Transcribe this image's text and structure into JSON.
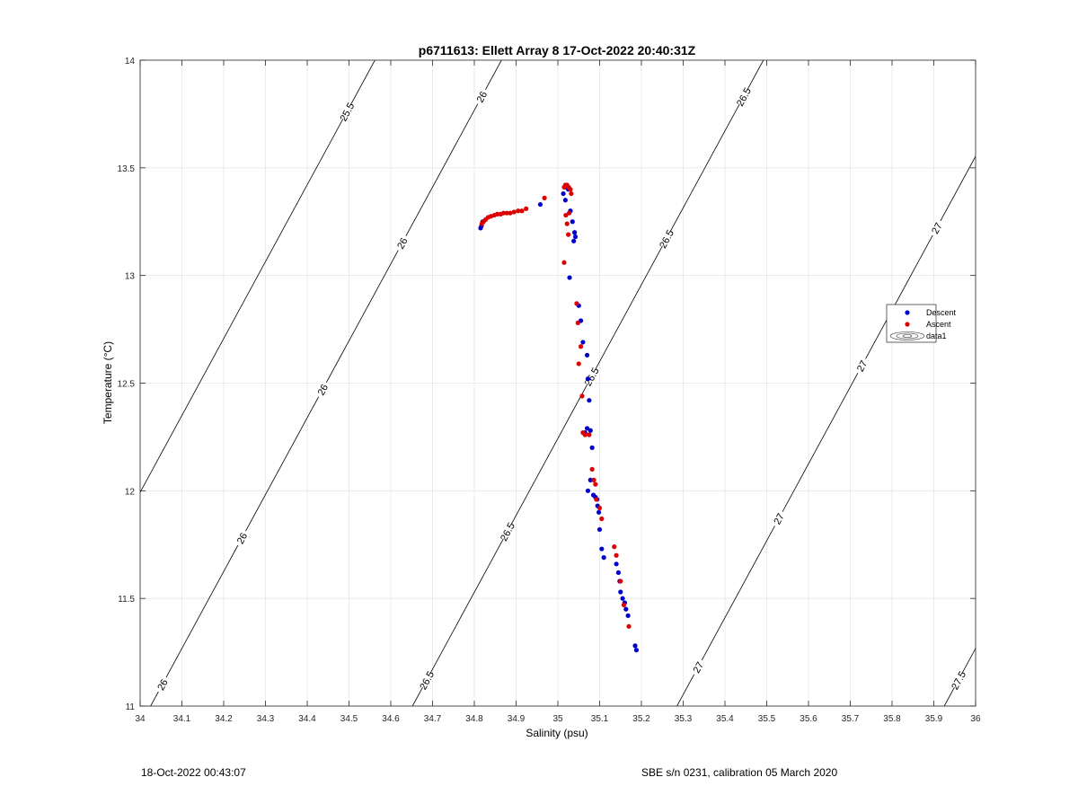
{
  "chart_data": {
    "type": "scatter",
    "title": "p6711613: Ellett Array 8 17-Oct-2022 20:40:31Z",
    "xlabel": "Salinity (psu)",
    "ylabel": "Temperature (°C)",
    "xlim": [
      34,
      36
    ],
    "ylim": [
      11,
      14
    ],
    "xticks": [
      34,
      34.1,
      34.2,
      34.3,
      34.4,
      34.5,
      34.6,
      34.7,
      34.8,
      34.9,
      35,
      35.1,
      35.2,
      35.3,
      35.4,
      35.5,
      35.6,
      35.7,
      35.8,
      35.9,
      36
    ],
    "xtick_labels": [
      "34",
      "34.1",
      "34.2",
      "34.3",
      "34.4",
      "34.5",
      "34.6",
      "34.7",
      "34.8",
      "34.9",
      "35",
      "35.1",
      "35.2",
      "35.3",
      "35.4",
      "35.5",
      "35.6",
      "35.7",
      "35.8",
      "35.9",
      "36"
    ],
    "yticks": [
      11,
      11.5,
      12,
      12.5,
      13,
      13.5,
      14
    ],
    "ytick_labels": [
      "11",
      "11.5",
      "12",
      "12.5",
      "13",
      "13.5",
      "14"
    ],
    "grid": true,
    "legend_position": "right",
    "series": [
      {
        "name": "Descent",
        "color": "#0000cc",
        "x": [
          34.815,
          34.817,
          34.82,
          34.958,
          35.013,
          35.018,
          35.02,
          35.025,
          35.03,
          35.035,
          35.04,
          35.038,
          35.042,
          35.028,
          35.05,
          35.055,
          35.06,
          35.07,
          35.072,
          35.075,
          35.07,
          35.065,
          35.078,
          35.082,
          35.078,
          35.072,
          35.085,
          35.09,
          35.094,
          35.095,
          35.098,
          35.1,
          35.105,
          35.11,
          35.14,
          35.145,
          35.148,
          35.15,
          35.155,
          35.16,
          35.163,
          35.168,
          35.185,
          35.188
        ],
        "y": [
          13.22,
          13.23,
          13.25,
          13.33,
          13.38,
          13.35,
          13.41,
          13.4,
          13.3,
          13.25,
          13.2,
          13.16,
          13.18,
          12.99,
          12.86,
          12.79,
          12.69,
          12.63,
          12.52,
          12.42,
          12.29,
          12.27,
          12.28,
          12.2,
          12.05,
          12.0,
          11.98,
          11.97,
          11.96,
          11.93,
          11.9,
          11.82,
          11.73,
          11.69,
          11.66,
          11.62,
          11.58,
          11.53,
          11.5,
          11.48,
          11.45,
          11.42,
          11.28,
          11.26
        ]
      },
      {
        "name": "Ascent",
        "color": "#dd0000",
        "x": [
          34.818,
          34.822,
          34.827,
          34.833,
          34.84,
          34.848,
          34.855,
          34.863,
          34.87,
          34.878,
          34.886,
          34.895,
          34.905,
          34.914,
          34.924,
          34.968,
          35.015,
          35.018,
          35.022,
          35.026,
          35.03,
          35.032,
          35.027,
          35.022,
          35.019,
          35.025,
          35.015,
          35.045,
          35.048,
          35.055,
          35.05,
          35.058,
          35.06,
          35.065,
          35.075,
          35.082,
          35.086,
          35.09,
          35.092,
          35.1,
          35.105,
          35.135,
          35.14,
          35.15,
          35.158,
          35.17
        ],
        "y": [
          13.24,
          13.25,
          13.26,
          13.27,
          13.275,
          13.28,
          13.285,
          13.285,
          13.29,
          13.29,
          13.29,
          13.295,
          13.3,
          13.3,
          13.31,
          13.36,
          13.41,
          13.42,
          13.42,
          13.41,
          13.4,
          13.38,
          13.29,
          13.24,
          13.28,
          13.19,
          13.06,
          12.87,
          12.78,
          12.67,
          12.59,
          12.44,
          12.27,
          12.26,
          12.26,
          12.1,
          12.05,
          12.03,
          11.96,
          11.92,
          11.87,
          11.74,
          11.7,
          11.58,
          11.47,
          11.37
        ]
      }
    ],
    "isopycnals": [
      {
        "label": "25.5",
        "x_at_bottom": 33.722,
        "label_positions": [
          [
            34.08,
            13.8
          ]
        ]
      },
      {
        "label": "26",
        "x_at_bottom": 34.025,
        "label_positions": [
          [
            34.035,
            11.1
          ],
          [
            34.37,
            11.98
          ],
          [
            34.68,
            12.8
          ],
          [
            34.97,
            13.58
          ],
          [
            34.82,
            13.13
          ]
        ]
      },
      {
        "label": "26.5",
        "x_at_bottom": 34.652,
        "label_positions": [
          [
            34.668,
            11.12
          ],
          [
            34.9,
            11.82
          ],
          [
            35.27,
            12.62
          ],
          [
            35.63,
            13.1
          ],
          [
            35.95,
            13.85
          ]
        ]
      },
      {
        "label": "27",
        "x_at_bottom": 35.285,
        "label_positions": [
          [
            35.29,
            11.18
          ],
          [
            35.5,
            11.87
          ],
          [
            35.68,
            12.58
          ],
          [
            35.94,
            13.22
          ]
        ]
      },
      {
        "label": "27.5",
        "x_at_bottom": 35.925,
        "label_positions": [
          [
            35.93,
            11.13
          ]
        ]
      }
    ],
    "isopycnal_labels_rendered": [
      {
        "label": "25.5",
        "x": 34.08,
        "y": 13.76
      },
      {
        "label": "26",
        "x": 34.03,
        "y": 11.1
      },
      {
        "label": "26",
        "x": 34.19,
        "y": 11.78
      },
      {
        "label": "26",
        "x": 34.35,
        "y": 12.47
      },
      {
        "label": "26",
        "x": 34.52,
        "y": 13.15
      },
      {
        "label": "26",
        "x": 34.71,
        "y": 13.83
      },
      {
        "label": "26.5",
        "x": 34.67,
        "y": 11.12
      },
      {
        "label": "26.5",
        "x": 34.84,
        "y": 11.81
      },
      {
        "label": "26.5",
        "x": 35.01,
        "y": 12.53
      },
      {
        "label": "26.5",
        "x": 35.18,
        "y": 13.17
      },
      {
        "label": "26.5",
        "x": 35.36,
        "y": 13.83
      },
      {
        "label": "27",
        "x": 35.27,
        "y": 11.18
      },
      {
        "label": "27",
        "x": 35.43,
        "y": 11.87
      },
      {
        "label": "27",
        "x": 35.61,
        "y": 12.58
      },
      {
        "label": "27",
        "x": 35.8,
        "y": 13.22
      },
      {
        "label": "27.5",
        "x": 35.9,
        "y": 11.12
      }
    ],
    "legend_entries": [
      "Descent",
      "Ascent",
      "data1"
    ]
  },
  "footer": {
    "left": "18-Oct-2022 00:43:07",
    "right": "SBE s/n 0231, calibration 05 March 2020"
  }
}
